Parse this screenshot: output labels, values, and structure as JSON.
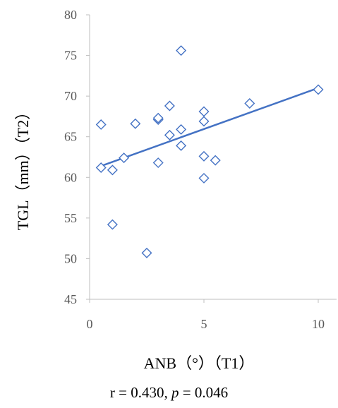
{
  "chart_data": {
    "type": "scatter",
    "xlabel": "ANB（°）（T1）",
    "ylabel": "TGL（mm）（T2）",
    "xlim": [
      0,
      10
    ],
    "ylim": [
      45,
      80
    ],
    "x_ticks": [
      "0",
      "5",
      "10"
    ],
    "y_ticks": [
      "45",
      "50",
      "55",
      "60",
      "65",
      "70",
      "75",
      "80"
    ],
    "grid": false,
    "marker": "hollow-diamond",
    "series": [
      {
        "points": [
          [
            0.5,
            61.2
          ],
          [
            0.5,
            66.5
          ],
          [
            1.0,
            60.9
          ],
          [
            1.0,
            54.2
          ],
          [
            1.5,
            62.4
          ],
          [
            2.0,
            66.6
          ],
          [
            2.5,
            50.7
          ],
          [
            3.0,
            67.1
          ],
          [
            3.0,
            67.3
          ],
          [
            3.0,
            61.8
          ],
          [
            3.5,
            68.8
          ],
          [
            3.5,
            65.2
          ],
          [
            4.0,
            75.6
          ],
          [
            4.0,
            65.9
          ],
          [
            4.0,
            63.9
          ],
          [
            5.0,
            68.1
          ],
          [
            5.0,
            66.9
          ],
          [
            5.0,
            62.6
          ],
          [
            5.0,
            59.9
          ],
          [
            5.5,
            62.1
          ],
          [
            7.0,
            69.1
          ],
          [
            10.0,
            70.8
          ]
        ]
      }
    ],
    "trendline": {
      "type": "linear",
      "x_start": 0.5,
      "y_start": 61.4,
      "x_end": 10.0,
      "y_end": 71.0
    },
    "stats": {
      "r_label": "r = 0.430, ",
      "p_symbol": "p",
      "p_label": " = 0.046"
    }
  },
  "colors": {
    "marker": "#4472c4",
    "trendline": "#4472c4",
    "axis": "#bfbfbf",
    "tick_text": "#595959",
    "title_text": "#000000"
  }
}
